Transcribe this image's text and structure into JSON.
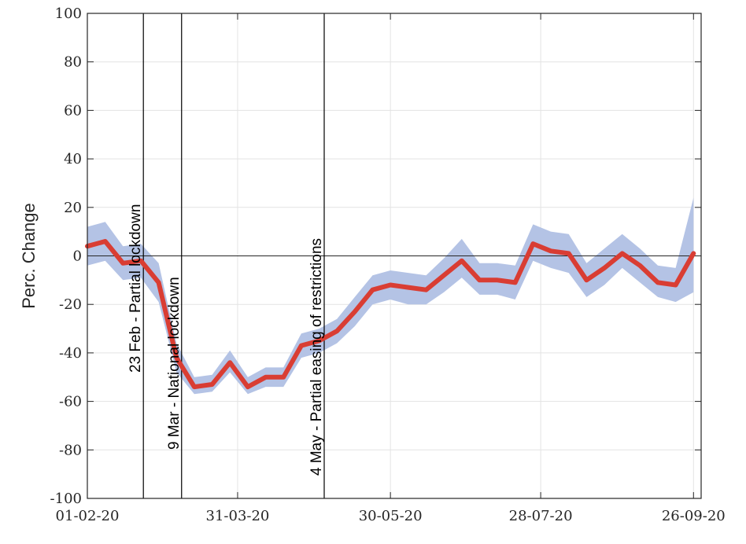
{
  "chart_data": {
    "type": "line",
    "xlabel": "",
    "ylabel": "Perc. Change",
    "ylim": [
      -100,
      100
    ],
    "xlim": [
      "2020-02-01",
      "2020-09-29"
    ],
    "x_tick_labels": [
      "01-02-20",
      "31-03-20",
      "30-05-20",
      "28-07-20",
      "26-09-20"
    ],
    "x_ticks": [
      "2020-02-01",
      "2020-03-31",
      "2020-05-30",
      "2020-07-28",
      "2020-09-26"
    ],
    "y_ticks": [
      -100,
      -80,
      -60,
      -40,
      -20,
      0,
      20,
      40,
      60,
      80,
      100
    ],
    "y_tick_labels": [
      "-100",
      "-80",
      "-60",
      "-40",
      "-20",
      "0",
      "20",
      "40",
      "60",
      "80",
      "100"
    ],
    "grid": true,
    "zero_line": true,
    "colors": {
      "line": "#d93d33",
      "band": "#b4c3e5",
      "axis": "#262626",
      "grid": "#e3e3e3",
      "event_line": "#000000"
    },
    "events": [
      {
        "date": "2020-02-23",
        "label": "23 Feb - Partial lockdown"
      },
      {
        "date": "2020-03-09",
        "label": "9 Mar - National lockdown"
      },
      {
        "date": "2020-05-04",
        "label": "4 May - Partial easing of restrictions"
      }
    ],
    "series": [
      {
        "x": [
          "2020-02-01",
          "2020-02-08",
          "2020-02-15",
          "2020-02-22",
          "2020-02-29",
          "2020-03-07",
          "2020-03-14",
          "2020-03-21",
          "2020-03-28",
          "2020-04-04",
          "2020-04-11",
          "2020-04-18",
          "2020-04-25",
          "2020-05-02",
          "2020-05-09",
          "2020-05-16",
          "2020-05-23",
          "2020-05-30",
          "2020-06-06",
          "2020-06-13",
          "2020-06-20",
          "2020-06-27",
          "2020-07-04",
          "2020-07-11",
          "2020-07-18",
          "2020-07-25",
          "2020-08-01",
          "2020-08-08",
          "2020-08-15",
          "2020-08-22",
          "2020-08-29",
          "2020-09-05",
          "2020-09-12",
          "2020-09-19",
          "2020-09-26"
        ],
        "values": [
          4,
          6,
          -3,
          -2,
          -11,
          -42,
          -54,
          -53,
          -44,
          -54,
          -50,
          -50,
          -37,
          -35,
          -31,
          -23,
          -14,
          -12,
          -13,
          -14,
          -8,
          -2,
          -10,
          -10,
          -11,
          5,
          2,
          1,
          -10,
          -5,
          1,
          -4,
          -11,
          -12,
          1
        ],
        "lower": [
          -4,
          -2,
          -10,
          -9,
          -19,
          -48,
          -57,
          -56,
          -48,
          -57,
          -54,
          -54,
          -42,
          -40,
          -36,
          -29,
          -20,
          -18,
          -20,
          -20,
          -15,
          -9,
          -16,
          -16,
          -18,
          -2,
          -5,
          -7,
          -17,
          -12,
          -5,
          -11,
          -17,
          -19,
          -15
        ],
        "upper": [
          12,
          14,
          4,
          5,
          -3,
          -36,
          -50,
          -49,
          -39,
          -50,
          -46,
          -46,
          -32,
          -30,
          -26,
          -17,
          -8,
          -6,
          -7,
          -8,
          -1,
          7,
          -3,
          -3,
          -4,
          13,
          10,
          9,
          -3,
          3,
          9,
          3,
          -4,
          -5,
          24
        ]
      }
    ]
  }
}
